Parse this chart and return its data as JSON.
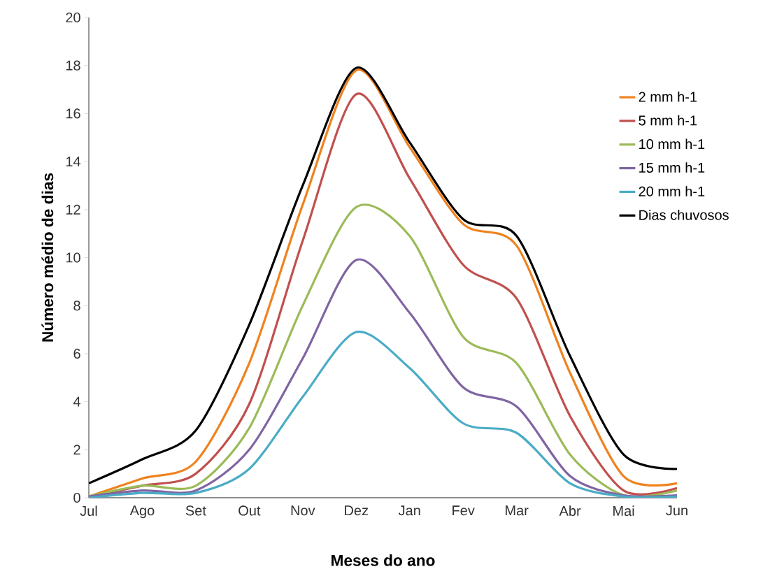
{
  "chart_data": {
    "type": "line",
    "xlabel": "Meses do ano",
    "ylabel": "Número médio de dias",
    "categories": [
      "Jul",
      "Ago",
      "Set",
      "Out",
      "Nov",
      "Dez",
      "Jan",
      "Fev",
      "Mar",
      "Abr",
      "Mai",
      "Jun"
    ],
    "ylim": [
      0,
      20
    ],
    "yticks": [
      0,
      2,
      4,
      6,
      8,
      10,
      12,
      14,
      16,
      18,
      20
    ],
    "grid": false,
    "legend": "top right",
    "marker": "none",
    "line_style": "solid",
    "series": [
      {
        "name": "2 mm h-1",
        "color": "#f0821e",
        "values": [
          0.05,
          0.8,
          1.5,
          5.6,
          12.2,
          17.8,
          14.6,
          11.4,
          10.5,
          5.2,
          0.9,
          0.6
        ]
      },
      {
        "name": "5 mm h-1",
        "color": "#c0504d",
        "values": [
          0.05,
          0.5,
          1.0,
          3.9,
          10.7,
          16.8,
          13.3,
          9.7,
          8.3,
          3.4,
          0.3,
          0.4
        ]
      },
      {
        "name": "10 mm h-1",
        "color": "#9bbb59",
        "values": [
          0.05,
          0.5,
          0.5,
          2.9,
          8.0,
          12.1,
          10.9,
          6.7,
          5.6,
          1.8,
          0.1,
          0.3
        ]
      },
      {
        "name": "15 mm h-1",
        "color": "#8064a2",
        "values": [
          0.05,
          0.3,
          0.3,
          2.0,
          5.8,
          9.9,
          7.7,
          4.6,
          3.8,
          0.9,
          0.1,
          0.1
        ]
      },
      {
        "name": "20 mm h-1",
        "color": "#4bacc6",
        "values": [
          0.0,
          0.2,
          0.2,
          1.2,
          4.2,
          6.9,
          5.4,
          3.1,
          2.7,
          0.6,
          0.05,
          0.05
        ]
      },
      {
        "name": "Dias chuvosos",
        "color": "#000000",
        "values": [
          0.6,
          1.6,
          2.8,
          7.2,
          13.0,
          17.9,
          14.8,
          11.6,
          10.9,
          5.9,
          1.8,
          1.2
        ]
      }
    ]
  }
}
